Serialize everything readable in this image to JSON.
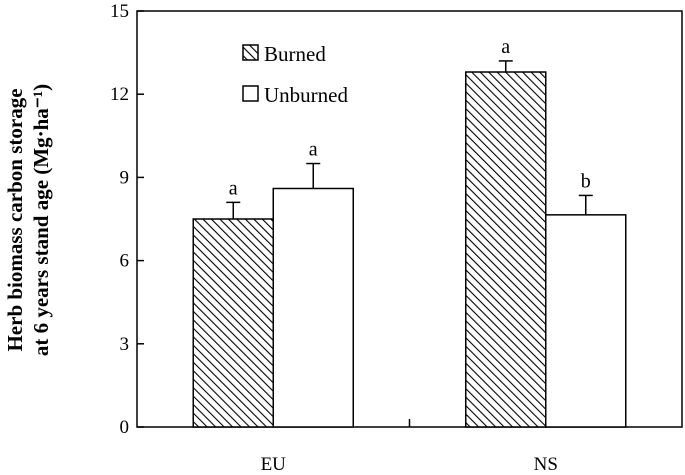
{
  "chart_data": {
    "type": "bar",
    "categories": [
      "EU",
      "NS"
    ],
    "series": [
      {
        "name": "Burned",
        "values": [
          7.5,
          12.8
        ],
        "errors": [
          0.6,
          0.4
        ],
        "letters": [
          "a",
          "a"
        ],
        "fill": "hatched"
      },
      {
        "name": "Unburned",
        "values": [
          8.6,
          7.65
        ],
        "errors": [
          0.9,
          0.7
        ],
        "letters": [
          "a",
          "b"
        ],
        "fill": "white"
      }
    ],
    "ylabel_line1": "Herb biomass carbon storage",
    "ylabel_line2": "at 6 years stand age (Mg·ha⁻¹)",
    "ylim": [
      0,
      15
    ],
    "yticks": [
      0,
      3,
      6,
      9,
      12,
      15
    ],
    "ytick_labels": [
      "0",
      "3",
      "6",
      "9",
      "12",
      "15"
    ],
    "legend_position": "top-left",
    "grid": false,
    "colors": {
      "axis": "#000000",
      "bar_stroke": "#000000",
      "hatch": "#000000",
      "background": "#ffffff"
    }
  }
}
